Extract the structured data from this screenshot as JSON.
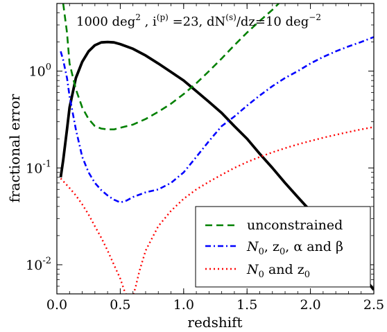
{
  "chart_data": {
    "type": "line",
    "title": "",
    "annotation": {
      "text": "1000 deg², i^(p) =23, dN^(s)/dz=10 deg^-2",
      "parts": {
        "area": "1000 deg",
        "area_exp": "2",
        "sep1": " , i",
        "i_sup": "(p)",
        "i_val": " =23, dN",
        "dn_sup": "(s)",
        "dz": "/dz=10 deg",
        "dz_exp": "−2"
      }
    },
    "xlabel": "redshift",
    "ylabel": "fractional error",
    "xlim": [
      0.0,
      2.5
    ],
    "ylim": [
      0.005,
      5.0
    ],
    "yscale": "log",
    "grid": false,
    "legend_position": "bottom-right",
    "x_ticks": [
      "0.0",
      "0.5",
      "1.0",
      "1.5",
      "2.0",
      "2.5"
    ],
    "y_ticks": [
      {
        "value": 0.01,
        "mantissa": "10",
        "exponent": "-2"
      },
      {
        "value": 0.1,
        "mantissa": "10",
        "exponent": "-1"
      },
      {
        "value": 1.0,
        "mantissa": "10",
        "exponent": "0"
      }
    ],
    "series": [
      {
        "name": "",
        "color": "#000000",
        "style": "solid",
        "x": [
          0.03,
          0.05,
          0.08,
          0.1,
          0.15,
          0.2,
          0.25,
          0.3,
          0.35,
          0.4,
          0.45,
          0.5,
          0.6,
          0.7,
          0.8,
          0.9,
          1.0,
          1.1,
          1.2,
          1.3,
          1.4,
          1.5,
          1.6,
          1.7,
          1.8,
          1.9,
          2.0,
          2.1,
          2.2,
          2.3,
          2.4,
          2.5
        ],
        "y": [
          0.08,
          0.12,
          0.25,
          0.42,
          0.85,
          1.25,
          1.6,
          1.85,
          1.98,
          2.0,
          1.98,
          1.9,
          1.7,
          1.45,
          1.2,
          0.98,
          0.8,
          0.62,
          0.48,
          0.37,
          0.27,
          0.2,
          0.14,
          0.1,
          0.07,
          0.05,
          0.036,
          0.025,
          0.017,
          0.012,
          0.008,
          0.0055
        ]
      },
      {
        "name": "unconstrained",
        "color": "#008000",
        "style": "dashed",
        "x": [
          0.05,
          0.08,
          0.1,
          0.15,
          0.2,
          0.25,
          0.3,
          0.35,
          0.4,
          0.45,
          0.5,
          0.6,
          0.7,
          0.8,
          0.9,
          1.0,
          1.1,
          1.2,
          1.3,
          1.4,
          1.5,
          1.6,
          1.7,
          1.75
        ],
        "y": [
          5.0,
          2.5,
          1.2,
          0.65,
          0.42,
          0.32,
          0.27,
          0.255,
          0.25,
          0.25,
          0.26,
          0.28,
          0.32,
          0.38,
          0.46,
          0.58,
          0.75,
          1.0,
          1.35,
          1.85,
          2.5,
          3.3,
          4.3,
          5.0
        ]
      },
      {
        "name": "N₀, z₀, α and β",
        "legend_parts": [
          "N",
          "0",
          ", z",
          "0",
          ", α and β"
        ],
        "color": "#0000ff",
        "style": "dashdot",
        "x": [
          0.03,
          0.05,
          0.08,
          0.1,
          0.15,
          0.2,
          0.25,
          0.3,
          0.35,
          0.4,
          0.45,
          0.5,
          0.55,
          0.6,
          0.7,
          0.8,
          0.9,
          1.0,
          1.1,
          1.2,
          1.3,
          1.4,
          1.5,
          1.6,
          1.7,
          1.8,
          1.9,
          2.0,
          2.1,
          2.2,
          2.3,
          2.4,
          2.5
        ],
        "y": [
          1.6,
          1.3,
          0.85,
          0.55,
          0.25,
          0.13,
          0.09,
          0.07,
          0.059,
          0.052,
          0.047,
          0.044,
          0.046,
          0.05,
          0.056,
          0.06,
          0.07,
          0.09,
          0.13,
          0.19,
          0.27,
          0.34,
          0.44,
          0.56,
          0.7,
          0.85,
          1.0,
          1.2,
          1.4,
          1.6,
          1.8,
          2.0,
          2.25
        ]
      },
      {
        "name": "N₀ and z₀",
        "legend_parts": [
          "N",
          "0",
          " and z",
          "0"
        ],
        "color": "#ff0000",
        "style": "dotted",
        "x": [
          0.03,
          0.1,
          0.15,
          0.2,
          0.25,
          0.3,
          0.35,
          0.4,
          0.45,
          0.5,
          0.53,
          0.55,
          0.58,
          0.6,
          0.62,
          0.65,
          0.7,
          0.8,
          0.9,
          1.0,
          1.1,
          1.2,
          1.3,
          1.4,
          1.5,
          1.6,
          1.7,
          1.8,
          1.9,
          2.0,
          2.1,
          2.2,
          2.3,
          2.4,
          2.5
        ],
        "y": [
          0.078,
          0.062,
          0.052,
          0.042,
          0.033,
          0.025,
          0.019,
          0.014,
          0.01,
          0.0072,
          0.0055,
          0.0048,
          0.0042,
          0.0048,
          0.0058,
          0.0085,
          0.014,
          0.025,
          0.036,
          0.048,
          0.06,
          0.072,
          0.085,
          0.1,
          0.115,
          0.13,
          0.145,
          0.16,
          0.175,
          0.19,
          0.205,
          0.22,
          0.235,
          0.25,
          0.265
        ]
      }
    ]
  }
}
